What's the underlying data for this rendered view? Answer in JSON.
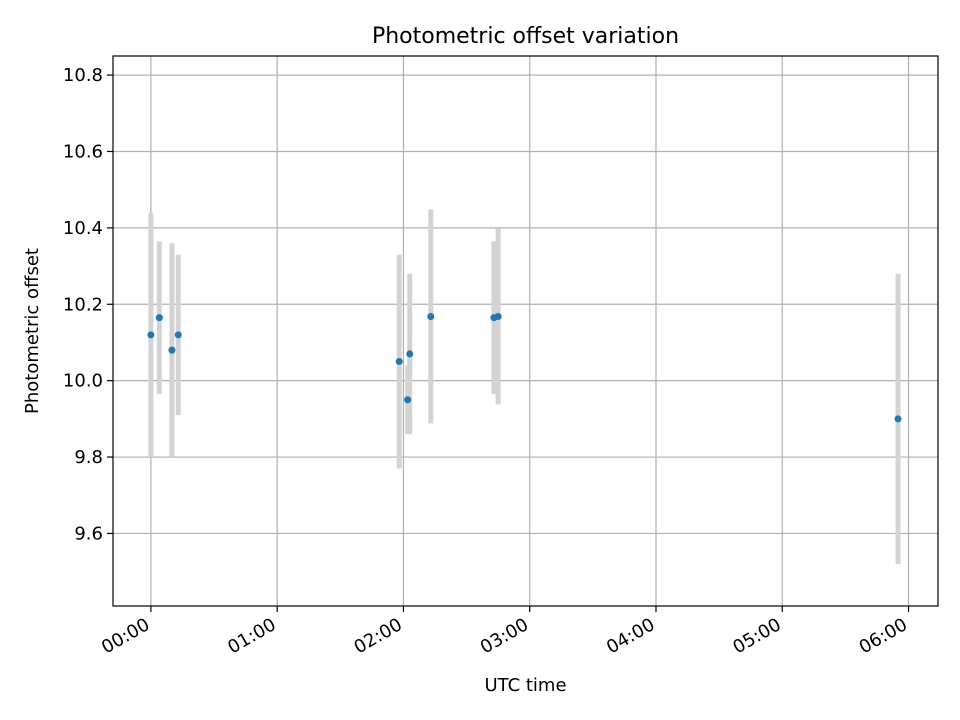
{
  "chart_data": {
    "type": "scatter",
    "title": "Photometric offset variation",
    "xlabel": "UTC time",
    "ylabel": "Photometric offset",
    "x_ticks": [
      "00:00",
      "01:00",
      "02:00",
      "03:00",
      "04:00",
      "05:00",
      "06:00"
    ],
    "y_ticks": [
      "9.6",
      "9.8",
      "10.0",
      "10.2",
      "10.4",
      "10.6",
      "10.8"
    ],
    "xlim": [
      "-00:18",
      "06:14"
    ],
    "ylim": [
      9.41,
      10.85
    ],
    "grid": true,
    "point_color": "#1f77b4",
    "errorbar_color": "#d3d3d3",
    "points": [
      {
        "x": "00:00",
        "y": 10.12,
        "yerr": 0.32
      },
      {
        "x": "00:04",
        "y": 10.165,
        "yerr": 0.2
      },
      {
        "x": "00:10",
        "y": 10.08,
        "yerr": 0.28
      },
      {
        "x": "00:13",
        "y": 10.12,
        "yerr": 0.21
      },
      {
        "x": "01:58",
        "y": 10.05,
        "yerr": 0.28
      },
      {
        "x": "02:02",
        "y": 9.95,
        "yerr": 0.09
      },
      {
        "x": "02:03",
        "y": 10.07,
        "yerr": 0.21
      },
      {
        "x": "02:13",
        "y": 10.168,
        "yerr": 0.28
      },
      {
        "x": "02:43",
        "y": 10.165,
        "yerr": 0.2
      },
      {
        "x": "02:45",
        "y": 10.168,
        "yerr": 0.23
      },
      {
        "x": "05:55",
        "y": 9.9,
        "yerr": 0.38
      }
    ]
  }
}
